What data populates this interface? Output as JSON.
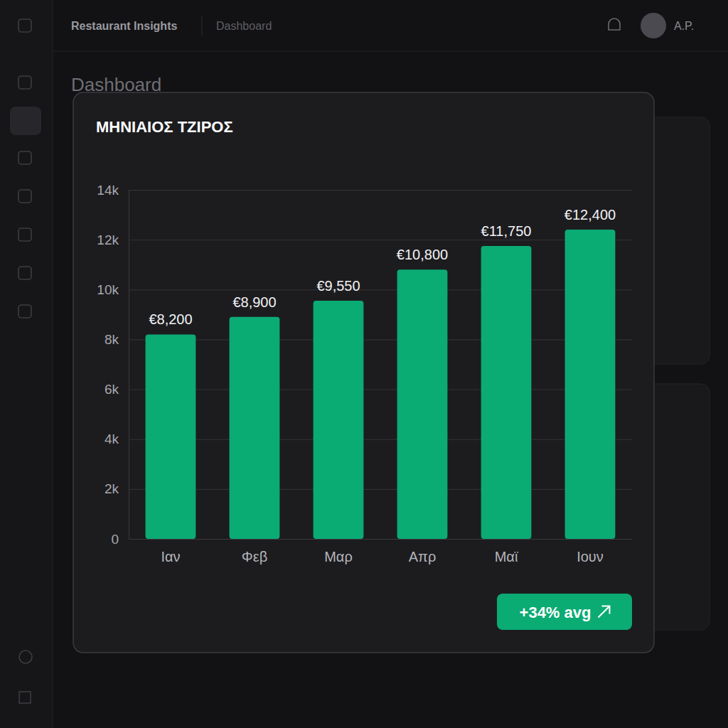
{
  "header": {
    "app": "Restaurant Insights",
    "section": "Dashboard",
    "user": "A.P."
  },
  "page_title": "Dashboard",
  "chart_data": {
    "type": "bar",
    "title": "ΜΗΝΙΑΙΟΣ ΤΖΙΡΟΣ",
    "categories": [
      "Ιαν",
      "Φεβ",
      "Μαρ",
      "Απρ",
      "Μαϊ",
      "Ιουν"
    ],
    "values": [
      8200,
      8900,
      9550,
      10800,
      11750,
      12400
    ],
    "value_labels": [
      "€8,200",
      "€8,900",
      "€9,550",
      "€10,800",
      "€11,750",
      "€12,400"
    ],
    "color": "#0bab74",
    "ylim": [
      0,
      14000
    ],
    "yticks": [
      0,
      {
        "value": 2000,
        "label": "2k"
      },
      {
        "value": 4000,
        "label": "4k"
      },
      {
        "value": 6000,
        "label": "6k"
      },
      {
        "value": 8000,
        "label": "8k"
      },
      {
        "value": 10000,
        "label": "10k"
      },
      {
        "value": 12000,
        "label": "12k"
      },
      {
        "value": 14000,
        "label": "14k"
      }
    ],
    "grid": true,
    "data_labels": true,
    "annotation": "+34% avg"
  }
}
